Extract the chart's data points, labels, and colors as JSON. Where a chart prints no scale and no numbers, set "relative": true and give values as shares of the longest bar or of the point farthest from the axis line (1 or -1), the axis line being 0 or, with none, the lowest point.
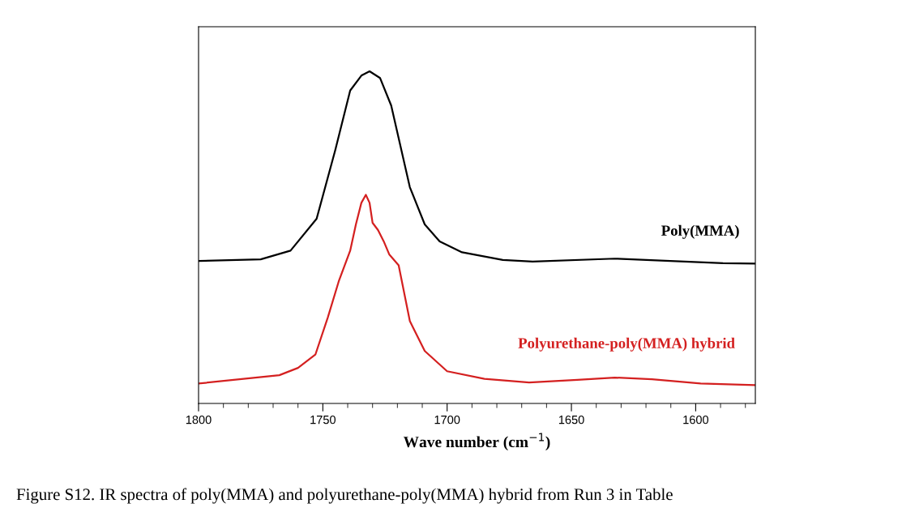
{
  "chart_data": {
    "type": "line",
    "relative": true,
    "xlabel": "Wave number (cm$^{−1}$)",
    "xlim": [
      1800,
      1576
    ],
    "xticks": [
      1800,
      {
        "value": 1790,
        "label": null
      },
      {
        "value": 1780,
        "label": null
      },
      {
        "value": 1770,
        "label": null
      },
      {
        "value": 1760,
        "label": null
      },
      1750,
      {
        "value": 1740,
        "label": null
      },
      {
        "value": 1730,
        "label": null
      },
      {
        "value": 1720,
        "label": null
      },
      {
        "value": 1710,
        "label": null
      },
      1700,
      {
        "value": 1690,
        "label": null
      },
      {
        "value": 1680,
        "label": null
      },
      {
        "value": 1670,
        "label": null
      },
      {
        "value": 1660,
        "label": null
      },
      1650,
      {
        "value": 1640,
        "label": null
      },
      {
        "value": 1630,
        "label": null
      },
      {
        "value": 1620,
        "label": null
      },
      {
        "value": 1610,
        "label": null
      },
      1600,
      {
        "value": 1590,
        "label": null
      },
      {
        "value": 1580,
        "label": null
      }
    ],
    "tick_labels": "x",
    "grid": false,
    "legend": false,
    "marker": "none",
    "line_style": "solid",
    "series": [
      {
        "name": "Poly(MMA)",
        "color": "#000000",
        "x": [
          1800,
          1775,
          1763,
          1752.5,
          1745,
          1739,
          1734.5,
          1731.2,
          1727,
          1722.5,
          1715,
          1709,
          1703,
          1694,
          1677.6,
          1665.6,
          1632.6,
          1589,
          1576
        ],
        "values": [
          0.429,
          0.434,
          0.46,
          0.556,
          0.763,
          0.942,
          0.987,
          1.0,
          0.98,
          0.897,
          0.651,
          0.539,
          0.488,
          0.455,
          0.432,
          0.427,
          0.436,
          0.422,
          0.421
        ]
      },
      {
        "name": "Polyurethane-poly(MMA) hybrid",
        "color": "#d42020",
        "x": [
          1800,
          1767.5,
          1760,
          1753,
          1748,
          1743.5,
          1739,
          1736.7,
          1734.5,
          1732.7,
          1731.2,
          1730,
          1727.8,
          1725.5,
          1723.3,
          1719.5,
          1715,
          1709,
          1700,
          1685,
          1667,
          1647.6,
          1632.6,
          1617.6,
          1598,
          1576
        ],
        "values": [
          0.06,
          0.085,
          0.107,
          0.147,
          0.259,
          0.37,
          0.46,
          0.539,
          0.604,
          0.628,
          0.604,
          0.544,
          0.522,
          0.488,
          0.449,
          0.416,
          0.248,
          0.158,
          0.097,
          0.074,
          0.063,
          0.071,
          0.078,
          0.073,
          0.06,
          0.055
        ]
      }
    ],
    "annotations": [
      "Figure S12. IR spectra of poly(MMA) and polyurethane-poly(MMA) hybrid from Run 3 in Table"
    ]
  }
}
